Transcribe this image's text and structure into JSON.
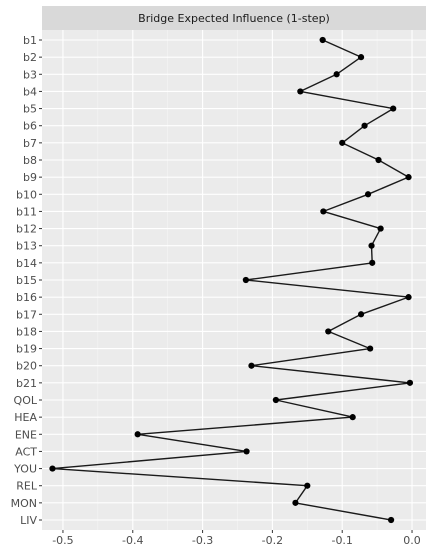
{
  "chart_data": {
    "type": "line",
    "title": "Bridge Expected Influence (1-step)",
    "xlabel": "",
    "ylabel": "",
    "xlim": [
      -0.53,
      0.02
    ],
    "x_ticks": [
      -0.5,
      -0.4,
      -0.3,
      -0.2,
      -0.1,
      0.0
    ],
    "x_tick_labels": [
      "-0.5",
      "-0.4",
      "-0.3",
      "-0.2",
      "-0.1",
      "0.0"
    ],
    "grid": true,
    "categories": [
      "b1",
      "b2",
      "b3",
      "b4",
      "b5",
      "b6",
      "b7",
      "b8",
      "b9",
      "b10",
      "b11",
      "b12",
      "b13",
      "b14",
      "b15",
      "b16",
      "b17",
      "b18",
      "b19",
      "b20",
      "b21",
      "QOL",
      "HEA",
      "ENE",
      "ACT",
      "YOU",
      "REL",
      "MON",
      "LIV"
    ],
    "values": [
      -0.128,
      -0.073,
      -0.108,
      -0.16,
      -0.027,
      -0.068,
      -0.1,
      -0.048,
      -0.005,
      -0.063,
      -0.127,
      -0.045,
      -0.058,
      -0.057,
      -0.238,
      -0.005,
      -0.073,
      -0.12,
      -0.06,
      -0.23,
      -0.003,
      -0.195,
      -0.085,
      -0.393,
      -0.237,
      -0.515,
      -0.15,
      -0.167,
      -0.03
    ]
  },
  "colors": {
    "panel_bg": "#ebebeb",
    "strip_bg": "#d9d9d9",
    "grid_major": "#ffffff",
    "grid_minor": "#f5f5f5",
    "line": "#1a1a1a",
    "point": "#000000"
  }
}
